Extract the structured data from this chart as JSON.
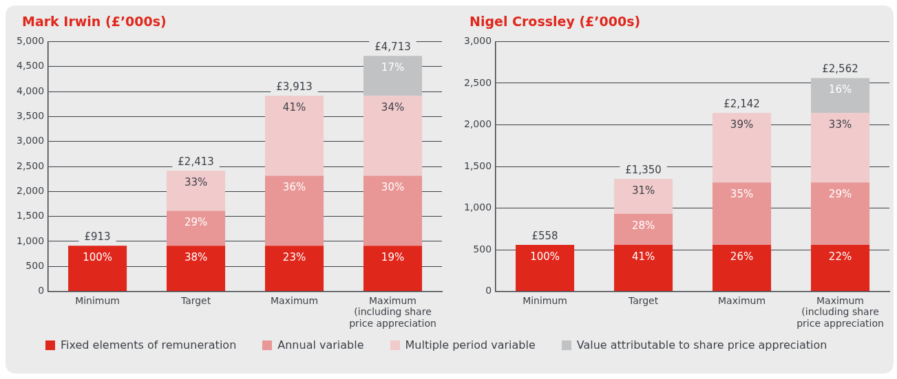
{
  "chart_data": [
    {
      "type": "bar",
      "title": "Mark Irwin (£’000s)",
      "categories": [
        "Minimum",
        "Target",
        "Maximum",
        "Maximum (including share price appreciation"
      ],
      "stacked": true,
      "ylim": [
        0,
        5000
      ],
      "yticks": [
        {
          "value": 0,
          "label": "0"
        },
        {
          "value": 500,
          "label": "500"
        },
        {
          "value": 1000,
          "label": "1,000"
        },
        {
          "value": 1500,
          "label": "1,500"
        },
        {
          "value": 2000,
          "label": "2,000"
        },
        {
          "value": 2500,
          "label": "2,500"
        },
        {
          "value": 3000,
          "label": "3,000"
        },
        {
          "value": 3500,
          "label": "3,500"
        },
        {
          "value": 4000,
          "label": "4,000"
        },
        {
          "value": 4500,
          "label": "4,500"
        },
        {
          "value": 5000,
          "label": "5,000"
        }
      ],
      "grid": "y",
      "legend": "bottom",
      "series": [
        {
          "name": "Fixed elements of remuneration",
          "color": "#e0271c",
          "values": [
            913,
            913,
            913,
            913
          ]
        },
        {
          "name": "Annual variable",
          "color": "#e89696",
          "values": [
            null,
            700,
            1400,
            1400
          ]
        },
        {
          "name": "Multiple period variable",
          "color": "#f1cacb",
          "values": [
            null,
            800,
            1600,
            1600
          ]
        },
        {
          "name": "Value attributable to share price appreciation",
          "color": "#c0c2c4",
          "values": [
            null,
            null,
            null,
            800
          ]
        }
      ],
      "totals": [
        "£913",
        "£2,413",
        "£3,913",
        "£4,713"
      ],
      "annotations": [
        {
          "text": "100%",
          "x": "Minimum",
          "y": 913
        },
        {
          "text": "38%",
          "x": "Target",
          "y": 913
        },
        {
          "text": "29%",
          "x": "Target",
          "y": 1613
        },
        {
          "text": "33%",
          "x": "Target",
          "y": 2413
        },
        {
          "text": "23%",
          "x": "Maximum",
          "y": 913
        },
        {
          "text": "36%",
          "x": "Maximum",
          "y": 2313
        },
        {
          "text": "41%",
          "x": "Maximum",
          "y": 3913
        },
        {
          "text": "19%",
          "x": "Maximum (including share price appreciation",
          "y": 913
        },
        {
          "text": "30%",
          "x": "Maximum (including share price appreciation",
          "y": 2313
        },
        {
          "text": "34%",
          "x": "Maximum (including share price appreciation",
          "y": 3913
        },
        {
          "text": "17%",
          "x": "Maximum (including share price appreciation",
          "y": 4713
        }
      ]
    },
    {
      "type": "bar",
      "title": "Nigel Crossley (£’000s)",
      "categories": [
        "Minimum",
        "Target",
        "Maximum",
        "Maximum (including share price appreciation"
      ],
      "stacked": true,
      "ylim": [
        0,
        3000
      ],
      "yticks": [
        {
          "value": 0,
          "label": "0"
        },
        {
          "value": 500,
          "label": "500"
        },
        {
          "value": 1000,
          "label": "1,000"
        },
        {
          "value": 1500,
          "label": "1,500"
        },
        {
          "value": 2000,
          "label": "2,000"
        },
        {
          "value": 2500,
          "label": "2,500"
        },
        {
          "value": 3000,
          "label": "3,000"
        }
      ],
      "grid": "y",
      "series": [
        {
          "color": "#e0271c",
          "values": [
            558,
            558,
            558,
            558
          ]
        },
        {
          "color": "#e89696",
          "values": [
            null,
            375,
            750,
            750
          ]
        },
        {
          "color": "#f1cacb",
          "values": [
            null,
            417,
            834,
            834
          ]
        },
        {
          "color": "#c0c2c4",
          "values": [
            null,
            null,
            null,
            420
          ]
        }
      ],
      "totals": [
        "£558",
        "£1,350",
        "£2,142",
        "£2,562"
      ],
      "annotations": [
        {
          "text": "100%",
          "x": "Minimum",
          "y": 558
        },
        {
          "text": "41%",
          "x": "Target",
          "y": 558
        },
        {
          "text": "28%",
          "x": "Target",
          "y": 933
        },
        {
          "text": "31%",
          "x": "Target",
          "y": 1350
        },
        {
          "text": "26%",
          "x": "Maximum",
          "y": 558
        },
        {
          "text": "35%",
          "x": "Maximum",
          "y": 1308
        },
        {
          "text": "39%",
          "x": "Maximum",
          "y": 2142
        },
        {
          "text": "22%",
          "x": "Maximum (including share price appreciation",
          "y": 558
        },
        {
          "text": "29%",
          "x": "Maximum (including share price appreciation",
          "y": 1308
        },
        {
          "text": "33%",
          "x": "Maximum (including share price appreciation",
          "y": 2142
        },
        {
          "text": "16%",
          "x": "Maximum (including share price appreciation",
          "y": 2562
        }
      ]
    }
  ]
}
